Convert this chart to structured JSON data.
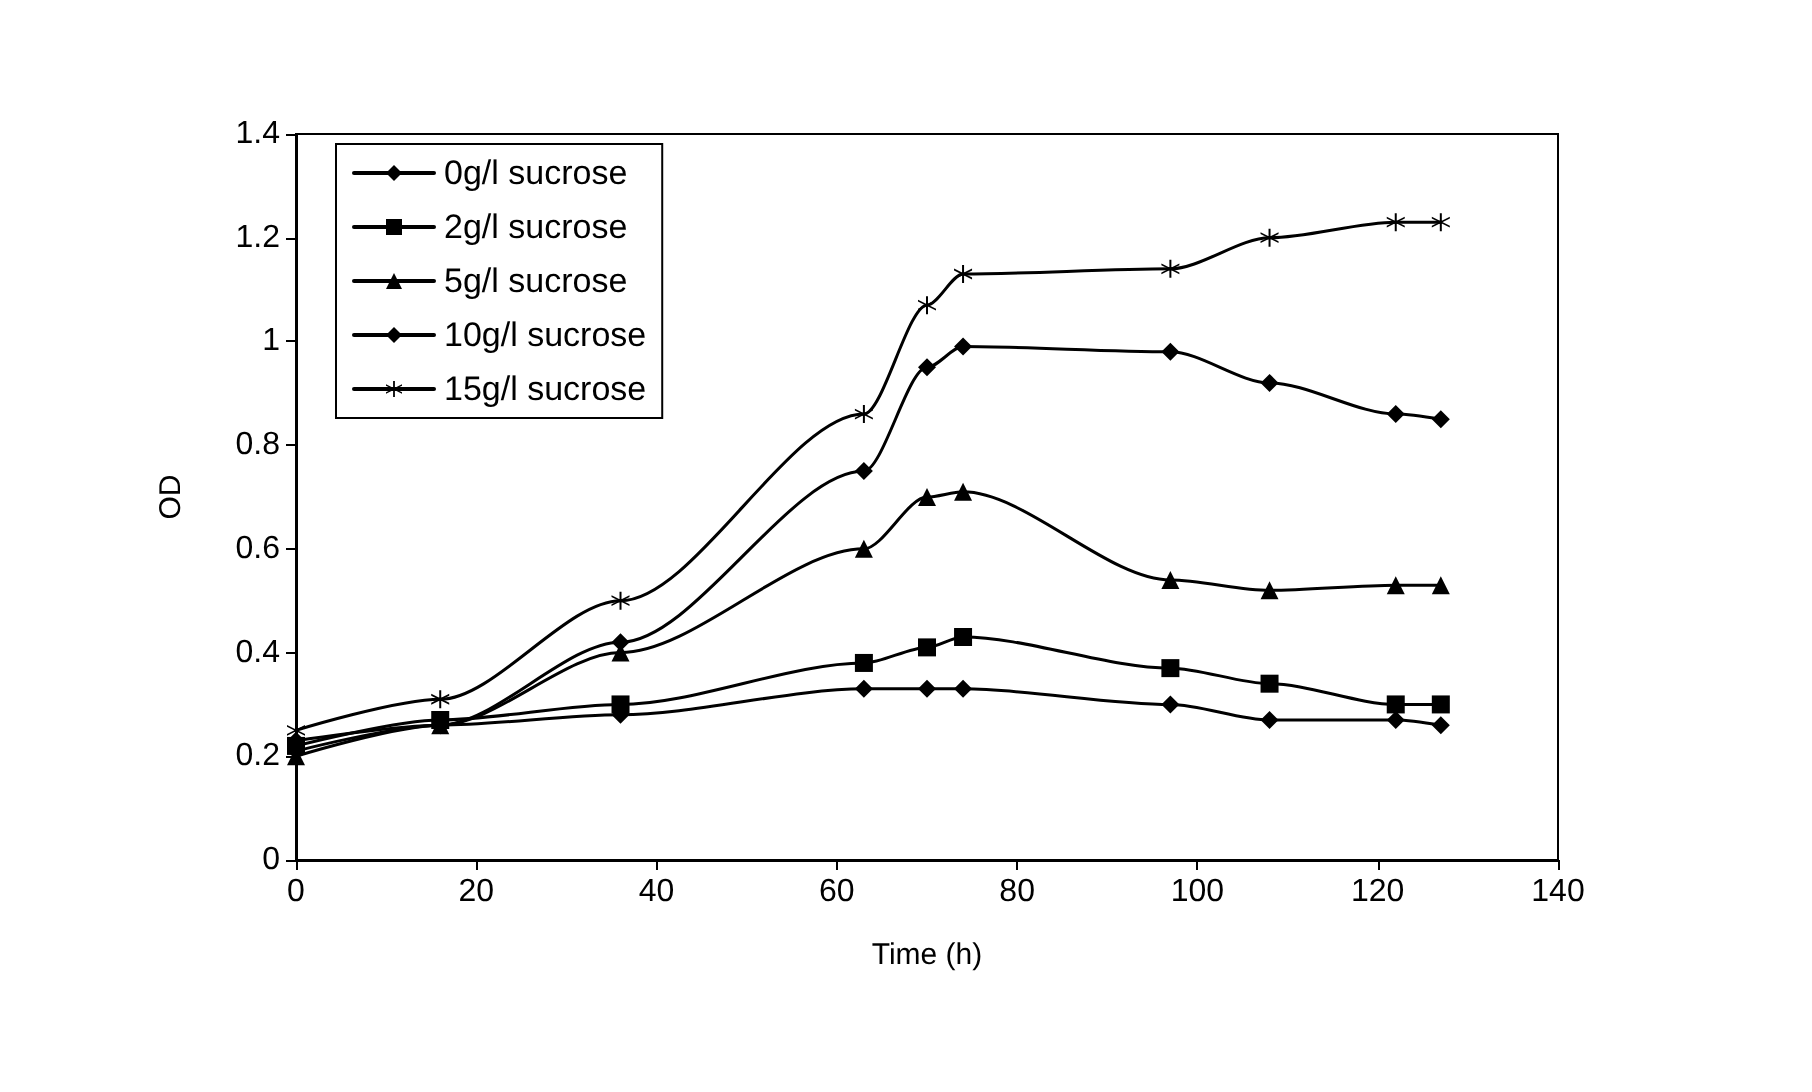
{
  "chart_data": {
    "type": "line",
    "xlabel": "Time (h)",
    "ylabel": "OD",
    "x": [
      0,
      16,
      36,
      63,
      70,
      74,
      97,
      108,
      122,
      127
    ],
    "xlim": [
      0,
      140
    ],
    "xticks": [
      0,
      20,
      40,
      60,
      80,
      100,
      120,
      140
    ],
    "ylim": [
      0,
      1.4
    ],
    "yticks": [
      0,
      0.2,
      0.4,
      0.6,
      0.8,
      1,
      1.2,
      1.4
    ],
    "grid": false,
    "legend": "top left",
    "series": [
      {
        "name": "0g/l sucrose",
        "color": "#000000",
        "marker": "diamond",
        "values": [
          0.23,
          0.26,
          0.28,
          0.33,
          0.33,
          0.33,
          0.3,
          0.27,
          0.27,
          0.26
        ]
      },
      {
        "name": "2g/l sucrose",
        "color": "#000000",
        "marker": "square",
        "values": [
          0.22,
          0.27,
          0.3,
          0.38,
          0.41,
          0.43,
          0.37,
          0.34,
          0.3,
          0.3
        ]
      },
      {
        "name": "5g/l sucrose",
        "color": "#000000",
        "marker": "triangle",
        "values": [
          0.2,
          0.26,
          0.4,
          0.6,
          0.7,
          0.71,
          0.54,
          0.52,
          0.53,
          0.53
        ]
      },
      {
        "name": "10g/l sucrose",
        "color": "#000000",
        "marker": "diamond",
        "values": [
          0.21,
          0.26,
          0.42,
          0.75,
          0.95,
          0.99,
          0.98,
          0.92,
          0.86,
          0.85
        ]
      },
      {
        "name": "15g/l sucrose",
        "color": "#000000",
        "marker": "cross",
        "values": [
          0.25,
          0.31,
          0.5,
          0.86,
          1.07,
          1.13,
          1.14,
          1.2,
          1.23,
          1.23
        ]
      }
    ]
  }
}
